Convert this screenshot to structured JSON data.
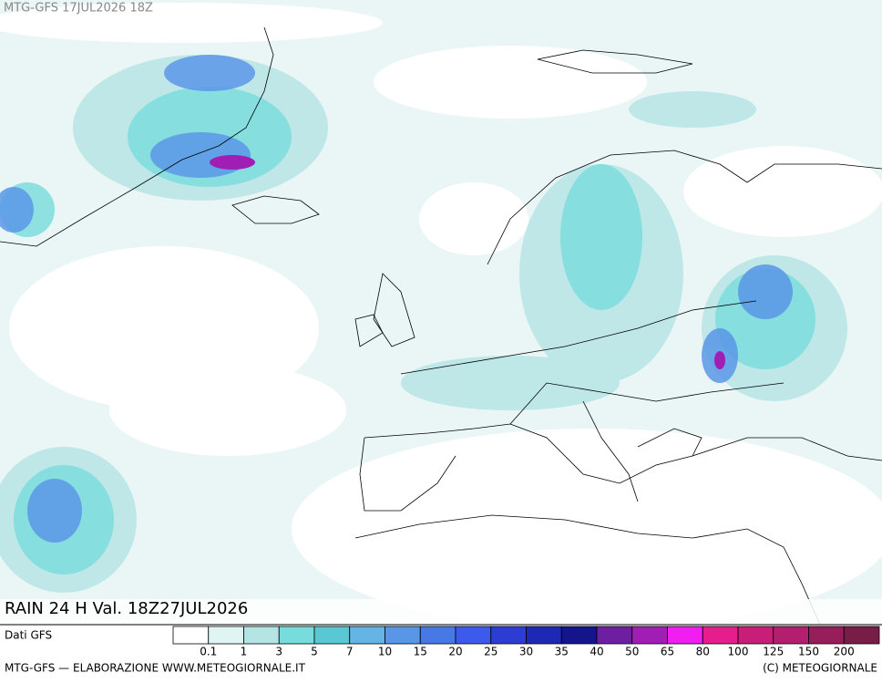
{
  "header": {
    "run": "MTG-GFS 17JUL2026 18Z"
  },
  "map": {
    "title": "RAIN 24 H Val. 18Z27JUL2026"
  },
  "legend": {
    "source": "Dati GFS",
    "labels": [
      "0.1",
      "1",
      "3",
      "5",
      "7",
      "10",
      "15",
      "20",
      "25",
      "30",
      "35",
      "40",
      "50",
      "65",
      "80",
      "100",
      "125",
      "150",
      "200"
    ],
    "colors": [
      "#ffffff",
      "#e0f4f4",
      "#b4e4e4",
      "#78dcdc",
      "#5ac8d2",
      "#64b4e6",
      "#5a96e6",
      "#4678e6",
      "#3c5aeb",
      "#2d3cd2",
      "#1e28b4",
      "#14148c",
      "#6e1ea0",
      "#a01eb4",
      "#f01ef0",
      "#e61e8c",
      "#c81e78",
      "#b41e6e",
      "#961e5a",
      "#781e46"
    ]
  },
  "footer": {
    "left": "MTG-GFS — ELABORAZIONE WWW.METEOGIORNALE.IT",
    "right": "(C) METEOGIORNALE"
  }
}
